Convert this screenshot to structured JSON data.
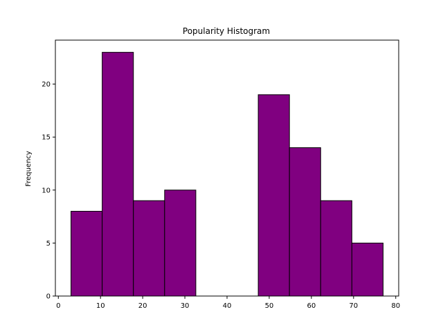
{
  "chart_data": {
    "type": "bar",
    "title": "Popularity Histogram",
    "xlabel": "",
    "ylabel": "Frequency",
    "bins": [
      {
        "start": 3.0,
        "end": 10.4,
        "count": 8
      },
      {
        "start": 10.4,
        "end": 17.8,
        "count": 23
      },
      {
        "start": 17.8,
        "end": 25.2,
        "count": 9
      },
      {
        "start": 25.2,
        "end": 32.6,
        "count": 10
      },
      {
        "start": 32.6,
        "end": 40.0,
        "count": 0
      },
      {
        "start": 40.0,
        "end": 47.4,
        "count": 0
      },
      {
        "start": 47.4,
        "end": 54.8,
        "count": 19
      },
      {
        "start": 54.8,
        "end": 62.2,
        "count": 14
      },
      {
        "start": 62.2,
        "end": 69.6,
        "count": 9
      },
      {
        "start": 69.6,
        "end": 77.0,
        "count": 5
      }
    ],
    "xlim": [
      -0.7,
      80.7
    ],
    "ylim": [
      0,
      24.15
    ],
    "xticks": [
      0,
      10,
      20,
      30,
      40,
      50,
      60,
      70,
      80
    ],
    "yticks": [
      0,
      5,
      10,
      15,
      20
    ],
    "bar_color": "#800080",
    "edge_color": "#000000",
    "grid": false,
    "legend": "none"
  }
}
